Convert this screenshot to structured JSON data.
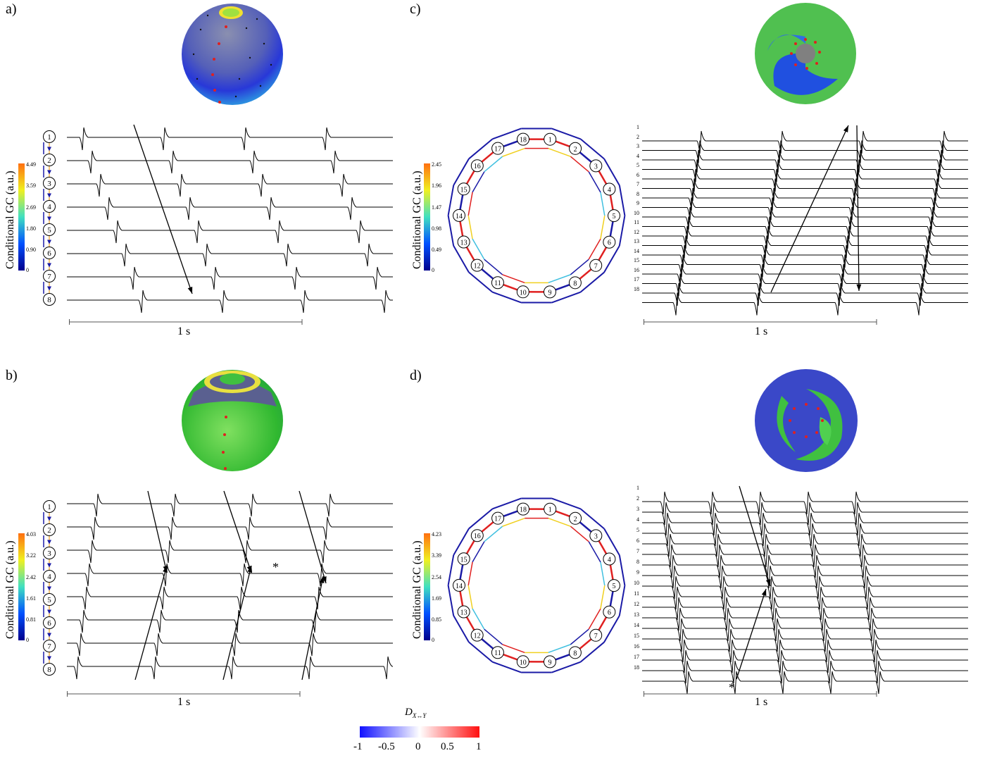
{
  "panels": [
    {
      "letter": "a)",
      "cbar_ticks": [
        "4.49",
        "3.59",
        "2.69",
        "1.80",
        "0.90",
        "0"
      ],
      "axis_label": "Conditional GC (a.u.)",
      "scale": "1 s",
      "nodes": [
        "1",
        "2",
        "3",
        "4",
        "5",
        "6",
        "7",
        "8"
      ]
    },
    {
      "letter": "b)",
      "cbar_ticks": [
        "4.03",
        "3.22",
        "2.42",
        "1.61",
        "0.81",
        "0"
      ],
      "axis_label": "Conditional GC (a.u.)",
      "scale": "1 s",
      "nodes": [
        "1",
        "2",
        "3",
        "4",
        "5",
        "6",
        "7",
        "8"
      ],
      "asterisk": "*"
    },
    {
      "letter": "c)",
      "cbar_ticks": [
        "2.45",
        "1.96",
        "1.47",
        "0.98",
        "0.49",
        "0"
      ],
      "axis_label": "Conditional GC (a.u.)",
      "scale": "1 s",
      "nodes": [
        "1",
        "2",
        "3",
        "4",
        "5",
        "6",
        "7",
        "8",
        "9",
        "10",
        "11",
        "12",
        "13",
        "14",
        "15",
        "16",
        "17",
        "18"
      ]
    },
    {
      "letter": "d)",
      "cbar_ticks": [
        "4.23",
        "3.39",
        "2.54",
        "1.69",
        "0.85",
        "0"
      ],
      "axis_label": "Conditional GC (a.u.)",
      "scale": "1 s",
      "nodes": [
        "1",
        "2",
        "3",
        "4",
        "5",
        "6",
        "7",
        "8",
        "9",
        "10",
        "11",
        "12",
        "13",
        "14",
        "15",
        "16",
        "17",
        "18"
      ],
      "asterisk": "*"
    }
  ],
  "bottom_colorbar": {
    "label": "D",
    "subscript": "X↔Y",
    "ticks": [
      "-1",
      "-0.5",
      "0",
      "0.5",
      "1"
    ]
  },
  "colors": {
    "arrow_blue": "#1a1aa6",
    "arrow_red": "#e02020",
    "sphere_green": "#40c040",
    "sphere_blue": "#2050e0",
    "sphere_gray": "#5a6090"
  }
}
